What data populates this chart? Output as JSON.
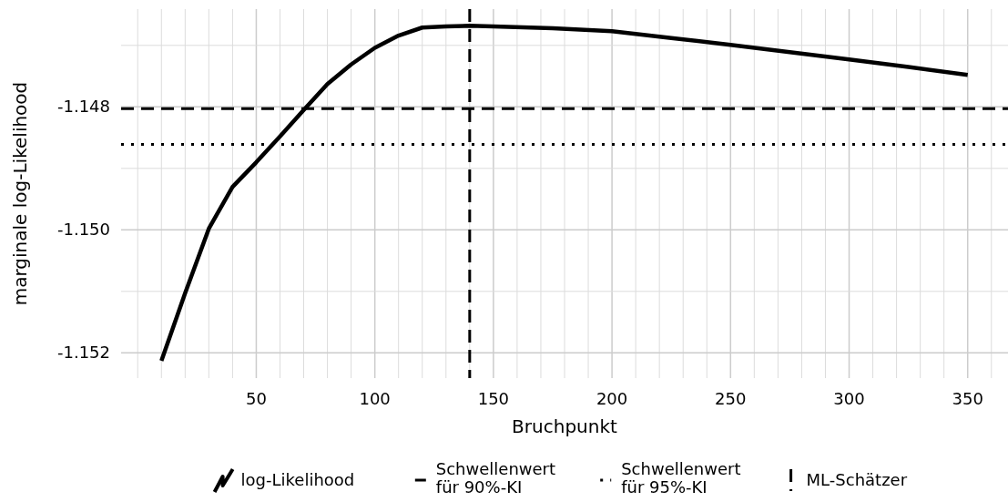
{
  "chart_data": {
    "type": "line",
    "xlabel": "Bruchpunkt",
    "ylabel": "marginale log-Likelihood",
    "series": [
      {
        "name": "log-Likelihood",
        "color": "#000000",
        "x": [
          10,
          20,
          30,
          40,
          50,
          60,
          70,
          80,
          90,
          100,
          110,
          120,
          130,
          140,
          150,
          175,
          200,
          225,
          250,
          275,
          300,
          325,
          350
        ],
        "values": [
          -1.15213,
          -1.15103,
          -1.14998,
          -1.1493,
          -1.1489,
          -1.14848,
          -1.14805,
          -1.14763,
          -1.14731,
          -1.14704,
          -1.14684,
          -1.14671,
          -1.14669,
          -1.14668,
          -1.14669,
          -1.14672,
          -1.14677,
          -1.14688,
          -1.14699,
          -1.14711,
          -1.14723,
          -1.14735,
          -1.14748
        ]
      }
    ],
    "xlim": [
      -7,
      367
    ],
    "xticks": [
      50,
      100,
      150,
      200,
      250,
      300,
      350
    ],
    "ylim": [
      -1.15241,
      -1.14641
    ],
    "yticks": [
      {
        "value": -1.152,
        "label": "-1.152"
      },
      {
        "value": -1.15,
        "label": "-1.150"
      },
      {
        "value": -1.148,
        "label": "-1.148"
      }
    ],
    "ref_lines": [
      {
        "axis": "y",
        "value": -1.14803,
        "label": "Schwellenwert für 90%-KI",
        "color": "#000000",
        "line_style": "dashed"
      },
      {
        "axis": "y",
        "value": -1.14861,
        "label": "Schwellenwert für 95%-KI",
        "color": "#000000",
        "line_style": "dotted"
      },
      {
        "axis": "x",
        "value": 140,
        "label": "ML-Schätzer",
        "color": "#000000",
        "line_style": "dashed"
      }
    ],
    "grid": true,
    "legend": "bottom",
    "line_style": "solid",
    "marker": "none"
  }
}
